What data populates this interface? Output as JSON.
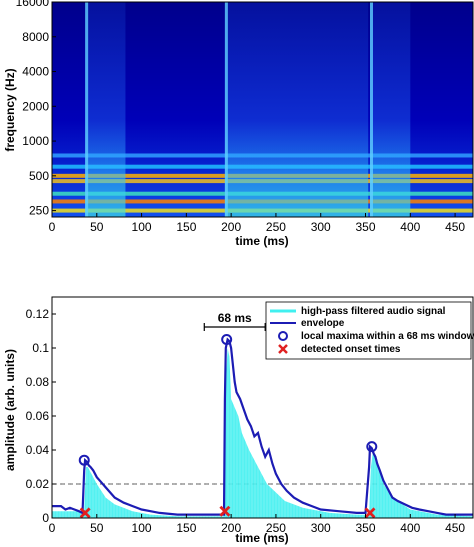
{
  "chart_data": [
    {
      "type": "heatmap",
      "xlabel": "time (ms)",
      "ylabel": "frequency (Hz)",
      "xlim": [
        0,
        470
      ],
      "x_ticks": [
        0,
        50,
        100,
        150,
        200,
        250,
        300,
        350,
        400,
        450
      ],
      "y_ticks": [
        250,
        500,
        1000,
        2000,
        4000,
        8000,
        16000
      ],
      "y_scale": "log2",
      "ylim": [
        220,
        16000
      ],
      "colormap": "jet",
      "tone_bands_hz": [
        250,
        300,
        350,
        450,
        500,
        600,
        750
      ],
      "onset_times_ms": [
        37,
        193,
        355
      ]
    },
    {
      "type": "line",
      "xlabel": "time (ms)",
      "ylabel": "amplitude (arb. units)",
      "xlim": [
        0,
        470
      ],
      "ylim": [
        0,
        0.13
      ],
      "x_ticks": [
        0,
        50,
        100,
        150,
        200,
        250,
        300,
        350,
        400,
        450
      ],
      "y_ticks": [
        0,
        0.02,
        0.04,
        0.06,
        0.08,
        0.1,
        0.12
      ],
      "threshold": 0.02,
      "window_label": "68 ms",
      "window_range": [
        170,
        238
      ],
      "series": [
        {
          "name": "high-pass filtered audio signal",
          "color": "#40f0f0",
          "x": [
            0,
            36,
            38,
            40,
            45,
            50,
            60,
            70,
            90,
            110,
            140,
            170,
            192,
            194,
            196,
            198,
            200,
            204,
            208,
            212,
            216,
            220,
            230,
            240,
            260,
            280,
            310,
            340,
            354,
            356,
            358,
            362,
            366,
            370,
            380,
            400,
            430,
            470
          ],
          "values": [
            0.004,
            0.004,
            0.03,
            0.03,
            0.025,
            0.02,
            0.012,
            0.008,
            0.004,
            0.002,
            0.001,
            0.001,
            0.001,
            0.08,
            0.1,
            0.095,
            0.07,
            0.065,
            0.06,
            0.05,
            0.045,
            0.04,
            0.03,
            0.02,
            0.01,
            0.006,
            0.003,
            0.002,
            0.002,
            0.03,
            0.038,
            0.035,
            0.028,
            0.02,
            0.012,
            0.005,
            0.002,
            0.001
          ]
        },
        {
          "name": "envelope",
          "color": "#1c1cb4",
          "x": [
            0,
            5,
            10,
            15,
            20,
            25,
            30,
            34,
            36,
            37,
            39,
            41,
            43,
            46,
            50,
            55,
            60,
            65,
            70,
            80,
            90,
            100,
            110,
            120,
            140,
            160,
            180,
            192,
            193,
            194,
            196,
            198,
            200,
            202,
            204,
            206,
            210,
            214,
            218,
            222,
            226,
            230,
            234,
            238,
            242,
            246,
            250,
            256,
            262,
            270,
            280,
            290,
            300,
            320,
            340,
            350,
            354,
            355,
            357,
            359,
            361,
            363,
            366,
            370,
            374,
            380,
            386,
            394,
            402,
            410,
            420,
            430,
            440,
            450,
            460,
            470
          ],
          "values": [
            0.007,
            0.007,
            0.007,
            0.005,
            0.006,
            0.005,
            0.004,
            0.003,
            0.028,
            0.034,
            0.033,
            0.031,
            0.03,
            0.028,
            0.024,
            0.021,
            0.018,
            0.015,
            0.012,
            0.009,
            0.007,
            0.005,
            0.004,
            0.003,
            0.002,
            0.002,
            0.002,
            0.002,
            0.07,
            0.1,
            0.105,
            0.104,
            0.1,
            0.09,
            0.08,
            0.074,
            0.07,
            0.064,
            0.058,
            0.054,
            0.048,
            0.05,
            0.042,
            0.036,
            0.04,
            0.032,
            0.026,
            0.02,
            0.016,
            0.012,
            0.009,
            0.007,
            0.005,
            0.004,
            0.003,
            0.003,
            0.03,
            0.042,
            0.041,
            0.038,
            0.036,
            0.032,
            0.028,
            0.022,
            0.018,
            0.012,
            0.01,
            0.008,
            0.006,
            0.005,
            0.004,
            0.003,
            0.002,
            0.002,
            0.002,
            0.002
          ]
        },
        {
          "name": "local maxima within a 68 ms window",
          "color": "#1c1cb4",
          "x": [
            36,
            195,
            357
          ],
          "values": [
            0.034,
            0.105,
            0.042
          ]
        },
        {
          "name": "detected onset times",
          "color": "#e02020",
          "x": [
            37,
            193,
            355
          ],
          "values": [
            0.003,
            0.004,
            0.003
          ]
        }
      ]
    }
  ]
}
